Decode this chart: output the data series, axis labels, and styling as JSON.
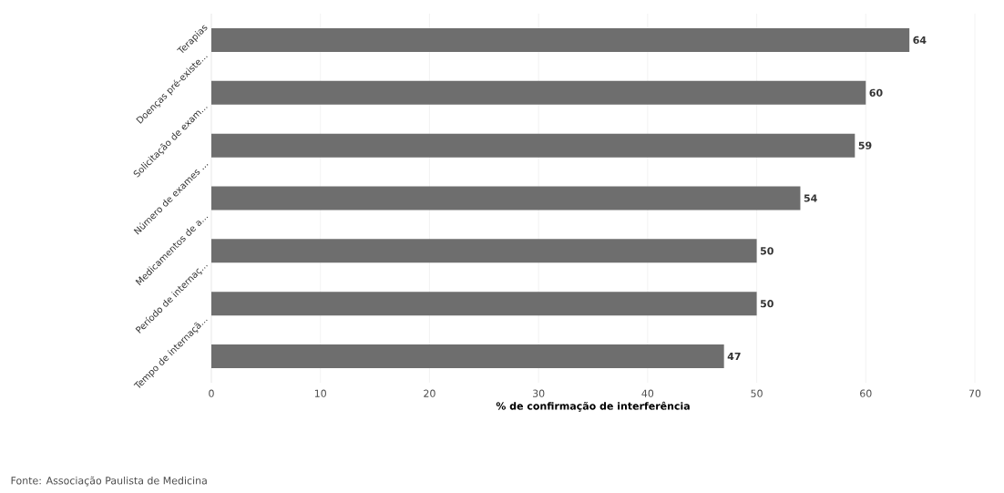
{
  "chart_data": {
    "type": "bar",
    "orientation": "horizontal",
    "categories": [
      "Terapias",
      "Doenças pré-existe...",
      "Solicitação de exam...",
      "Número de exames ...",
      "Medicamentos de a...",
      "Período de internaç...",
      "Tempo de internaçã..."
    ],
    "values": [
      64,
      60,
      59,
      54,
      50,
      50,
      47
    ],
    "color": "#6e6e6e",
    "data_labels": true,
    "xlabel": "% de confirmação de interferência",
    "xlim": [
      0,
      70
    ],
    "xticks": [
      0,
      10,
      20,
      30,
      40,
      50,
      60,
      70
    ],
    "grid": "x",
    "annotations": [
      "Fonte: Associação Paulista de Medicina"
    ]
  }
}
